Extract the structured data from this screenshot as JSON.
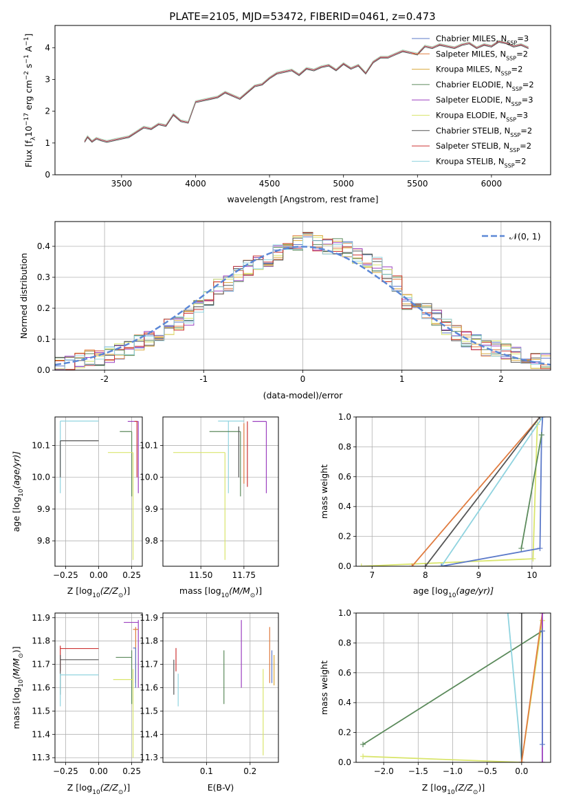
{
  "title": "PLATE=2105, MJD=53472, FIBERID=0461, z=0.473",
  "colors": {
    "Chabrier MILES": "#5b79c9",
    "Salpeter MILES": "#e07b3f",
    "Kroupa MILES": "#d9a838",
    "Chabrier ELODIE": "#5b8a5b",
    "Salpeter ELODIE": "#9b3fbf",
    "Kroupa ELODIE": "#d9e56b",
    "Chabrier STELIB": "#555555",
    "Salpeter STELIB": "#cc3333",
    "Kroupa STELIB": "#8fd3df"
  },
  "chart_data": [
    {
      "id": "spectrum",
      "type": "line",
      "title": "PLATE=2105, MJD=53472, FIBERID=0461, z=0.473",
      "xlabel": "wavelength [Angstrom, rest frame]",
      "ylabel_parts": [
        "Flux [f",
        "λ",
        "10",
        "−17",
        " erg cm",
        "−2",
        " s",
        "−1",
        " A",
        "−1",
        "]"
      ],
      "xlim": [
        3050,
        6400
      ],
      "ylim": [
        0,
        4.7
      ],
      "xticks": [
        3500,
        4000,
        4500,
        5000,
        5500,
        6000
      ],
      "yticks": [
        0,
        1,
        2,
        3,
        4
      ],
      "data_color": "#808080",
      "data_series": {
        "name": "data",
        "x": [
          3250,
          3270,
          3300,
          3330,
          3360,
          3400,
          3450,
          3500,
          3550,
          3600,
          3650,
          3700,
          3750,
          3800,
          3850,
          3900,
          3950,
          4000,
          4050,
          4100,
          4150,
          4200,
          4250,
          4300,
          4350,
          4400,
          4450,
          4500,
          4550,
          4600,
          4650,
          4700,
          4750,
          4800,
          4850,
          4900,
          4950,
          5000,
          5050,
          5100,
          5150,
          5200,
          5250,
          5300,
          5350,
          5400,
          5450,
          5500,
          5550,
          5600,
          5650,
          5700,
          5750,
          5800,
          5850,
          5900,
          5950,
          6000,
          6050,
          6100,
          6150,
          6200,
          6250
        ],
        "y": [
          1.05,
          1.2,
          1.05,
          1.15,
          1.1,
          1.05,
          1.1,
          1.15,
          1.2,
          1.35,
          1.5,
          1.45,
          1.6,
          1.55,
          1.9,
          1.7,
          1.65,
          2.3,
          2.35,
          2.4,
          2.45,
          2.6,
          2.5,
          2.4,
          2.6,
          2.8,
          2.85,
          3.05,
          3.2,
          3.25,
          3.3,
          3.15,
          3.35,
          3.3,
          3.4,
          3.45,
          3.3,
          3.5,
          3.35,
          3.45,
          3.2,
          3.55,
          3.7,
          3.7,
          3.8,
          3.9,
          3.85,
          3.8,
          4.05,
          4.0,
          4.1,
          4.05,
          4.0,
          4.1,
          4.15,
          4.0,
          4.1,
          4.05,
          4.2,
          4.15,
          4.05,
          4.1,
          4.0
        ]
      },
      "model_series": [
        {
          "name": "Chabrier MILES",
          "nssp": "3"
        },
        {
          "name": "Salpeter MILES",
          "nssp": "2"
        },
        {
          "name": "Kroupa MILES",
          "nssp": "2"
        },
        {
          "name": "Chabrier ELODIE",
          "nssp": "2"
        },
        {
          "name": "Salpeter ELODIE",
          "nssp": "3"
        },
        {
          "name": "Kroupa ELODIE",
          "nssp": "3"
        },
        {
          "name": "Chabrier STELIB",
          "nssp": "2"
        },
        {
          "name": "Salpeter STELIB",
          "nssp": "2"
        },
        {
          "name": "Kroupa STELIB",
          "nssp": "2"
        }
      ],
      "legend": "upper right"
    },
    {
      "id": "residuals",
      "type": "histogram",
      "xlabel": "(data-model)/error",
      "ylabel": "Normed distribution",
      "xlim": [
        -2.5,
        2.5
      ],
      "ylim": [
        0,
        0.48
      ],
      "xticks": [
        -2,
        -1,
        0,
        1,
        2
      ],
      "yticks": [
        0.0,
        0.1,
        0.2,
        0.3,
        0.4
      ],
      "bin_edges": [
        -2.5,
        -2.4,
        -2.3,
        -2.2,
        -2.1,
        -2.0,
        -1.9,
        -1.8,
        -1.7,
        -1.6,
        -1.5,
        -1.4,
        -1.3,
        -1.2,
        -1.1,
        -1.0,
        -0.9,
        -0.8,
        -0.7,
        -0.6,
        -0.5,
        -0.4,
        -0.3,
        -0.2,
        -0.1,
        0.0,
        0.1,
        0.2,
        0.3,
        0.4,
        0.5,
        0.6,
        0.7,
        0.8,
        0.9,
        1.0,
        1.1,
        1.2,
        1.3,
        1.4,
        1.5,
        1.6,
        1.7,
        1.8,
        1.9,
        2.0,
        2.1,
        2.2,
        2.3,
        2.4,
        2.5
      ],
      "reference_counts": [
        0.02,
        0.02,
        0.03,
        0.04,
        0.04,
        0.05,
        0.06,
        0.07,
        0.09,
        0.1,
        0.12,
        0.14,
        0.15,
        0.17,
        0.2,
        0.23,
        0.27,
        0.28,
        0.31,
        0.33,
        0.35,
        0.36,
        0.38,
        0.4,
        0.41,
        0.42,
        0.41,
        0.4,
        0.4,
        0.39,
        0.37,
        0.35,
        0.34,
        0.31,
        0.28,
        0.22,
        0.2,
        0.19,
        0.17,
        0.14,
        0.12,
        0.1,
        0.09,
        0.07,
        0.07,
        0.06,
        0.05,
        0.04,
        0.03,
        0.03
      ],
      "normal_curve": {
        "label": "𝒩(0, 1)",
        "color": "#5b87d6"
      },
      "legend": "upper right"
    },
    {
      "id": "age-vs-z",
      "type": "errorbar",
      "xlabel_parts": [
        "Z [log",
        "10",
        "(Z/Z",
        "⊙",
        ")]"
      ],
      "ylabel_parts": [
        "age  [log",
        "10",
        "(age/yr)]"
      ],
      "xlim": [
        -0.33,
        0.33
      ],
      "ylim": [
        9.72,
        10.19
      ],
      "xticks": [
        -0.25,
        0.0,
        0.25
      ],
      "xticklabels": [
        "−0.25",
        "0.00",
        "0.25"
      ],
      "yticks": [
        9.8,
        9.9,
        10.0,
        10.1
      ],
      "points": [
        {
          "series": "Kroupa STELIB",
          "x": -0.29,
          "y": 10.177,
          "xl": -0.29,
          "xh": 0.0,
          "yl": 9.95,
          "yh": 10.177
        },
        {
          "series": "Chabrier STELIB",
          "x": -0.29,
          "y": 10.115,
          "xl": -0.29,
          "xh": 0.0,
          "yl": 10.0,
          "yh": 10.115
        },
        {
          "series": "Chabrier ELODIE",
          "x": 0.25,
          "y": 10.144,
          "xl": 0.16,
          "xh": 0.25,
          "yl": 9.94,
          "yh": 10.144
        },
        {
          "series": "Salpeter ELODIE",
          "x": 0.3,
          "y": 10.176,
          "xl": 0.22,
          "xh": 0.3,
          "yl": 9.95,
          "yh": 10.176
        },
        {
          "series": "Kroupa ELODIE",
          "x": 0.26,
          "y": 10.078,
          "xl": 0.07,
          "xh": 0.26,
          "yl": 9.74,
          "yh": 10.078
        },
        {
          "series": "Salpeter STELIB",
          "x": 0.29,
          "y": 10.176,
          "xl": 0.27,
          "xh": 0.29,
          "yl": 10.0,
          "yh": 10.176
        }
      ]
    },
    {
      "id": "age-vs-mass",
      "type": "errorbar",
      "xlabel_parts": [
        "mass [log",
        "10",
        "(M/M",
        "⊙",
        ")]"
      ],
      "ylabel": "",
      "xlim": [
        11.28,
        11.95
      ],
      "ylim": [
        9.72,
        10.19
      ],
      "xticks": [
        11.5,
        11.75
      ],
      "xticklabels": [
        "11.50",
        "11.75"
      ],
      "yticks": [
        9.8,
        9.9,
        10.0,
        10.1
      ],
      "points": [
        {
          "series": "Kroupa STELIB",
          "x": 11.66,
          "y": 10.177,
          "xl": 11.6,
          "xh": 11.75,
          "yl": 9.95,
          "yh": 10.177
        },
        {
          "series": "Kroupa ELODIE",
          "x": 11.64,
          "y": 10.078,
          "xl": 11.34,
          "xh": 11.64,
          "yl": 9.74,
          "yh": 10.078
        },
        {
          "series": "Chabrier ELODIE",
          "x": 11.73,
          "y": 10.144,
          "xl": 11.55,
          "xh": 11.73,
          "yl": 9.94,
          "yh": 10.144
        },
        {
          "series": "Chabrier STELIB",
          "x": 11.72,
          "y": 10.115,
          "xl": 11.72,
          "xh": 11.72,
          "yl": 10.0,
          "yh": 10.16
        },
        {
          "series": "Salpeter STELIB",
          "x": 11.77,
          "y": 10.176,
          "xl": 11.77,
          "xh": 11.77,
          "yl": 9.97,
          "yh": 10.176
        },
        {
          "series": "Salpeter ELODIE",
          "x": 11.88,
          "y": 10.176,
          "xl": 11.8,
          "xh": 11.88,
          "yl": 9.95,
          "yh": 10.176
        },
        {
          "series": "Salpeter MILES",
          "x": 11.75,
          "y": 10.17,
          "xl": 11.75,
          "xh": 11.75,
          "yl": 9.98,
          "yh": 10.17
        }
      ]
    },
    {
      "id": "weight-vs-age",
      "type": "line",
      "xlabel_parts": [
        "age  [log",
        "10",
        "(age/yr)]"
      ],
      "ylabel": "mass weight",
      "xlim": [
        6.7,
        10.35
      ],
      "ylim": [
        0.0,
        1.0
      ],
      "xticks": [
        7,
        8,
        9,
        10
      ],
      "yticks": [
        0.0,
        0.2,
        0.4,
        0.6,
        0.8,
        1.0
      ],
      "yticklabels": [
        "0.0",
        "0.2",
        "0.4",
        "0.6",
        "0.8",
        "1.0"
      ],
      "series": [
        {
          "name": "Kroupa ELODIE",
          "x": [
            6.8,
            10.02,
            10.1
          ],
          "y": [
            0.0,
            0.05,
            0.95
          ]
        },
        {
          "name": "Salpeter MILES",
          "x": [
            7.75,
            10.15
          ],
          "y": [
            0.0,
            1.0
          ]
        },
        {
          "name": "Chabrier STELIB",
          "x": [
            8.0,
            10.15
          ],
          "y": [
            0.0,
            1.0
          ]
        },
        {
          "name": "Kroupa STELIB",
          "x": [
            8.3,
            10.2
          ],
          "y": [
            0.0,
            1.0
          ]
        },
        {
          "name": "Chabrier MILES",
          "x": [
            8.3,
            10.15,
            10.18,
            10.2
          ],
          "y": [
            0.0,
            0.12,
            0.88,
            1.0
          ]
        },
        {
          "name": "Chabrier ELODIE",
          "x": [
            9.8,
            10.18
          ],
          "y": [
            0.12,
            0.88
          ]
        }
      ]
    },
    {
      "id": "mass-vs-z",
      "type": "errorbar",
      "xlabel_parts": [
        "Z [log",
        "10",
        "(Z/Z",
        "⊙",
        ")]"
      ],
      "ylabel_parts": [
        "mass [log",
        "10",
        "(M/M",
        "⊙",
        ")]"
      ],
      "xlim": [
        -0.33,
        0.33
      ],
      "ylim": [
        11.28,
        11.92
      ],
      "xticks": [
        -0.25,
        0.0,
        0.25
      ],
      "xticklabels": [
        "−0.25",
        "0.00",
        "0.25"
      ],
      "yticks": [
        11.3,
        11.4,
        11.5,
        11.6,
        11.7,
        11.8,
        11.9
      ],
      "points": [
        {
          "series": "Salpeter STELIB",
          "x": -0.29,
          "y": 11.768,
          "xl": -0.29,
          "xh": 0.0,
          "yl": 11.67,
          "yh": 11.78
        },
        {
          "series": "Chabrier STELIB",
          "x": -0.29,
          "y": 11.72,
          "xl": -0.29,
          "xh": 0.0,
          "yl": 11.57,
          "yh": 11.74
        },
        {
          "series": "Kroupa STELIB",
          "x": -0.29,
          "y": 11.655,
          "xl": -0.29,
          "xh": 0.0,
          "yl": 11.52,
          "yh": 11.66
        },
        {
          "series": "Chabrier ELODIE",
          "x": 0.25,
          "y": 11.73,
          "xl": 0.13,
          "xh": 0.25,
          "yl": 11.53,
          "yh": 11.76
        },
        {
          "series": "Kroupa ELODIE",
          "x": 0.26,
          "y": 11.635,
          "xl": 0.11,
          "xh": 0.26,
          "yl": 11.3,
          "yh": 11.68
        },
        {
          "series": "Salpeter ELODIE",
          "x": 0.3,
          "y": 11.88,
          "xl": 0.19,
          "xh": 0.3,
          "yl": 11.6,
          "yh": 11.89
        },
        {
          "series": "Salpeter MILES",
          "x": 0.28,
          "y": 11.85,
          "xl": 0.26,
          "xh": 0.3,
          "yl": 11.62,
          "yh": 11.86
        },
        {
          "series": "Chabrier MILES",
          "x": 0.28,
          "y": 11.77,
          "xl": 0.26,
          "xh": 0.28,
          "yl": 11.6,
          "yh": 11.77
        }
      ]
    },
    {
      "id": "mass-vs-ebv",
      "type": "errorbar",
      "xlabel": "E(B-V)",
      "ylabel": "",
      "xlim": [
        0.0,
        0.265
      ],
      "ylim": [
        11.28,
        11.92
      ],
      "xticks": [
        0.1,
        0.2
      ],
      "xticklabels": [
        "0.1",
        "0.2"
      ],
      "yticks": [
        11.3,
        11.4,
        11.5,
        11.6,
        11.7,
        11.8,
        11.9
      ],
      "points": [
        {
          "series": "Chabrier STELIB",
          "x": 0.025,
          "y": 11.68,
          "yl": 11.57,
          "yh": 11.72
        },
        {
          "series": "Salpeter STELIB",
          "x": 0.03,
          "y": 11.72,
          "yl": 11.67,
          "yh": 11.77
        },
        {
          "series": "Kroupa STELIB",
          "x": 0.035,
          "y": 11.6,
          "yl": 11.52,
          "yh": 11.66
        },
        {
          "series": "Chabrier ELODIE",
          "x": 0.14,
          "y": 11.66,
          "yl": 11.53,
          "yh": 11.76
        },
        {
          "series": "Salpeter ELODIE",
          "x": 0.18,
          "y": 11.8,
          "yl": 11.6,
          "yh": 11.89
        },
        {
          "series": "Kroupa ELODIE",
          "x": 0.23,
          "y": 11.5,
          "yl": 11.31,
          "yh": 11.68
        },
        {
          "series": "Salpeter MILES",
          "x": 0.245,
          "y": 11.7,
          "yl": 11.62,
          "yh": 11.86
        },
        {
          "series": "Chabrier MILES",
          "x": 0.25,
          "y": 11.7,
          "yl": 11.62,
          "yh": 11.76
        },
        {
          "series": "Kroupa MILES",
          "x": 0.255,
          "y": 11.68,
          "yl": 11.61,
          "yh": 11.74
        }
      ]
    },
    {
      "id": "weight-vs-z",
      "type": "line",
      "xlabel_parts": [
        "Z [log",
        "10",
        "(Z/Z",
        "⊙",
        ")]"
      ],
      "ylabel": "mass weight",
      "xlim": [
        -2.4,
        0.42
      ],
      "ylim": [
        0.0,
        1.0
      ],
      "xticks": [
        -2.0,
        -1.5,
        -1.0,
        -0.5,
        0.0
      ],
      "xticklabels": [
        "−2.0",
        "−1.5",
        "−1.0",
        "−0.5",
        "0.0"
      ],
      "yticks": [
        0.0,
        0.2,
        0.4,
        0.6,
        0.8,
        1.0
      ],
      "yticklabels": [
        "0.0",
        "0.2",
        "0.4",
        "0.6",
        "0.8",
        "1.0"
      ],
      "series": [
        {
          "name": "Kroupa ELODIE",
          "x": [
            -2.3,
            0.0,
            0.3
          ],
          "y": [
            0.04,
            0.0,
            0.95
          ]
        },
        {
          "name": "Chabrier ELODIE",
          "x": [
            -2.3,
            0.3
          ],
          "y": [
            0.12,
            0.88
          ]
        },
        {
          "name": "Kroupa STELIB",
          "x": [
            -0.2,
            0.0
          ],
          "y": [
            1.0,
            0.0
          ]
        },
        {
          "name": "Chabrier STELIB",
          "x": [
            0.0,
            0.0
          ],
          "y": [
            0.0,
            1.0
          ]
        },
        {
          "name": "Salpeter MILES",
          "x": [
            0.0,
            0.3
          ],
          "y": [
            0.0,
            1.0
          ]
        },
        {
          "name": "Salpeter ELODIE",
          "x": [
            0.3,
            0.3
          ],
          "y": [
            0.0,
            1.0
          ]
        },
        {
          "name": "Chabrier MILES",
          "x": [
            0.3,
            0.3
          ],
          "y": [
            0.12,
            0.88
          ]
        }
      ]
    }
  ]
}
